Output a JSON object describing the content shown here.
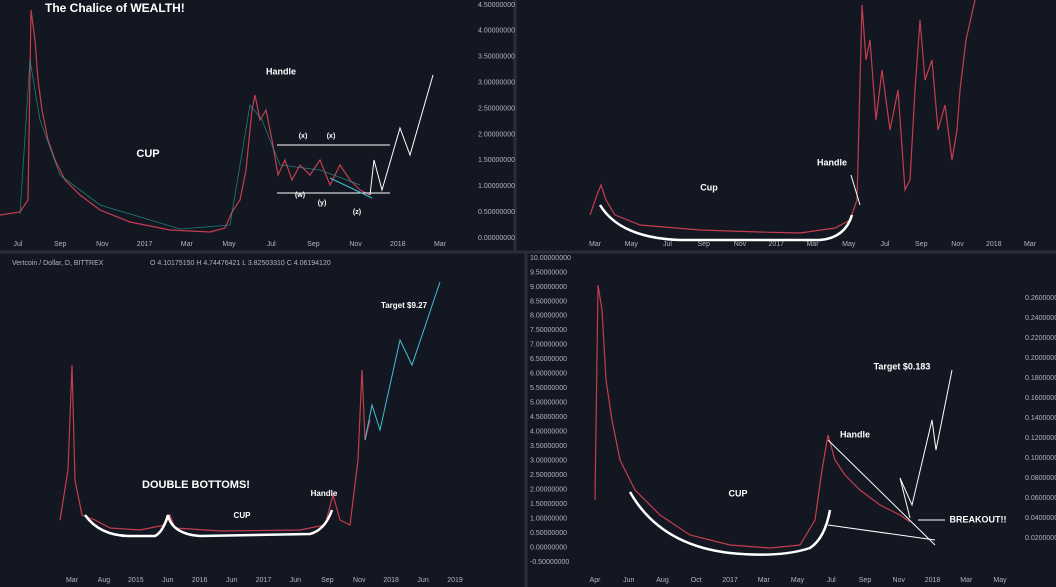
{
  "panels": [
    {
      "title": "The Chalice of WEALTH!",
      "annotations": [
        "CUP",
        "Handle",
        "(x)",
        "(x)",
        "(w)",
        "(y)",
        "(z)"
      ],
      "y_labels": [
        "4.50000000",
        "4.00000000",
        "3.50000000",
        "3.00000000",
        "2.50000000",
        "2.00000000",
        "1.50000000",
        "1.00000000",
        "0.50000000",
        "0.00000000"
      ],
      "x_labels": [
        "Jul",
        "Sep",
        "Nov",
        "2017",
        "Mar",
        "May",
        "Jul",
        "Sep",
        "Nov",
        "2018",
        "Mar"
      ]
    },
    {
      "annotations": [
        "Cup",
        "Handle"
      ],
      "x_labels": [
        "Mar",
        "May",
        "Jul",
        "Sep",
        "Nov",
        "2017",
        "Mar",
        "May",
        "Jul",
        "Sep",
        "Nov",
        "2018",
        "Mar"
      ]
    },
    {
      "symbol": "Vertcoin / Dollar, D, BITTREX",
      "ohlc": "O 4.10175150 H 4.74476421 L 3.82503310 C 4.06194120",
      "annotations": [
        "DOUBLE BOTTOMS!",
        "CUP",
        "Handle",
        "Target $9.27"
      ],
      "y_labels": [
        "10.00000000",
        "9.50000000",
        "9.00000000",
        "8.50000000",
        "8.00000000",
        "7.50000000",
        "7.00000000",
        "6.50000000",
        "6.00000000",
        "5.50000000",
        "5.00000000",
        "4.50000000",
        "4.00000000",
        "3.50000000",
        "3.00000000",
        "2.50000000",
        "2.00000000",
        "1.50000000",
        "1.00000000",
        "0.50000000",
        "0.00000000",
        "-0.50000000"
      ],
      "x_labels": [
        "Mar",
        "Aug",
        "2015",
        "Jun",
        "2016",
        "Jun",
        "2017",
        "Jun",
        "Sep",
        "Nov",
        "2018",
        "Jun",
        "2019"
      ]
    },
    {
      "annotations": [
        "CUP",
        "Handle",
        "Target $0.183",
        "BREAKOUT!!"
      ],
      "y_labels": [
        "0.26000000",
        "0.24000000",
        "0.22000000",
        "0.20000000",
        "0.18000000",
        "0.16000000",
        "0.14000000",
        "0.12000000",
        "0.10000000",
        "0.08000000",
        "0.06000000",
        "0.04000000",
        "0.02000000"
      ],
      "x_labels": [
        "Apr",
        "Jun",
        "Aug",
        "Oct",
        "2017",
        "Mar",
        "May",
        "Jul",
        "Sep",
        "Nov",
        "2018",
        "Mar",
        "May"
      ]
    }
  ]
}
